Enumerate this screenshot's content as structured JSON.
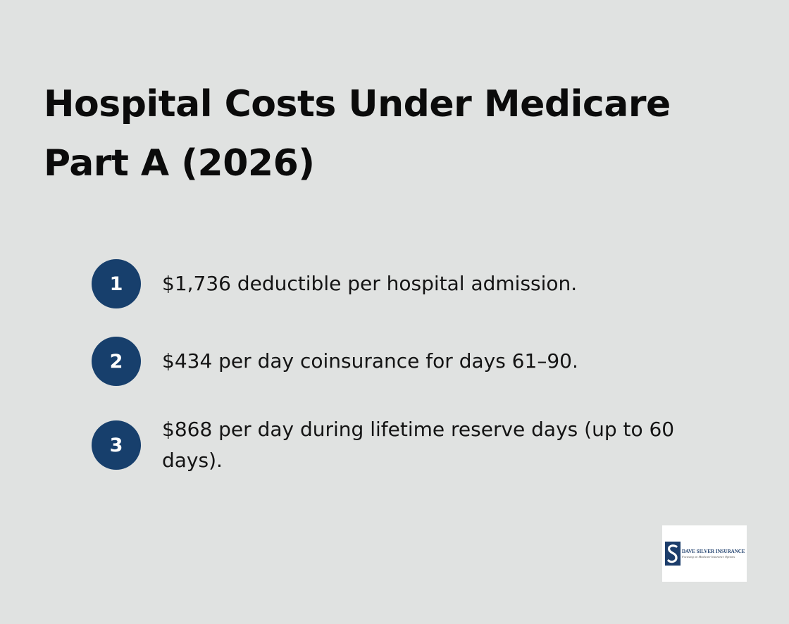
{
  "title": "Hospital Costs Under Medicare Part A (2026)",
  "items": [
    {
      "number": "1",
      "text": "$1,736 deductible per hospital admission."
    },
    {
      "number": "2",
      "text": "$434 per day coinsurance for days 61–90."
    },
    {
      "number": "3",
      "text": "$868 per day during lifetime reserve days (up to 60 days)."
    }
  ],
  "logo": {
    "name": "DAVE SILVER INSURANCE",
    "tagline": "Focusing on Medicare Insurance Options"
  },
  "colors": {
    "background": "#e0e2e1",
    "accent": "#173f6c",
    "text": "#141414"
  }
}
